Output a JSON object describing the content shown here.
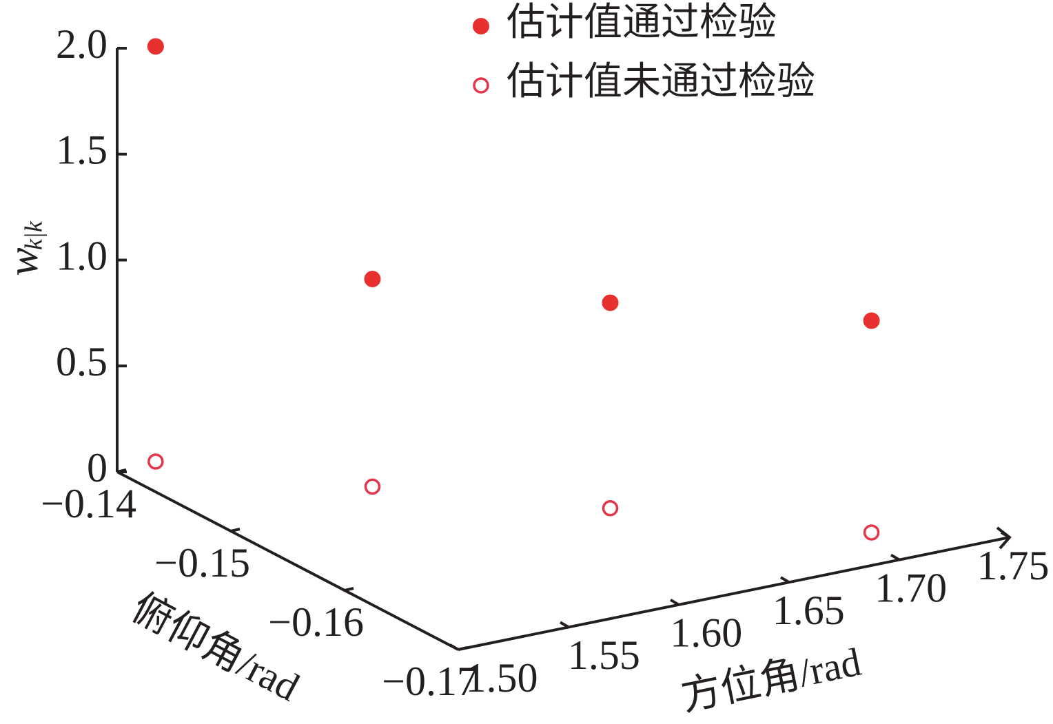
{
  "chart_data": {
    "type": "scatter3d",
    "x_label": "方位角/rad",
    "y_label": "俯仰角/rad",
    "z_label": "w",
    "z_label_subscript": "k|k",
    "xlim": [
      1.5,
      1.75
    ],
    "ylim": [
      -0.17,
      -0.14
    ],
    "zlim": [
      0,
      2
    ],
    "xticks": [
      {
        "value": 1.5,
        "label": "1.50"
      },
      1.55,
      {
        "value": 1.6,
        "label": "1.60"
      },
      1.65,
      {
        "value": 1.7,
        "label": "1.70"
      },
      1.75
    ],
    "yticks": [
      {
        "value": -0.14,
        "label": "−0.14"
      },
      {
        "value": -0.15,
        "label": "−0.15"
      },
      {
        "value": -0.16,
        "label": "−0.16"
      },
      {
        "value": -0.17,
        "label": "−0.17"
      }
    ],
    "zticks": [
      {
        "value": 0,
        "label": "0"
      },
      {
        "value": 0.5,
        "label": "0.5"
      },
      {
        "value": 1,
        "label": "1.0"
      },
      {
        "value": 1.5,
        "label": "1.5"
      },
      {
        "value": 2,
        "label": "2.0"
      }
    ],
    "series": [
      {
        "name": "估计值通过检验",
        "color": "#e8312f",
        "filled": true,
        "x": [
          1.519,
          1.574,
          1.638,
          1.708
        ],
        "y": [
          -0.1397,
          -0.1481,
          -0.1566,
          -0.166
        ],
        "z": [
          1.96,
          0.98,
          0.97,
          1.0
        ]
      },
      {
        "name": "估计值未通过检验",
        "color": "#e3344a",
        "filled": false,
        "x": [
          1.519,
          1.574,
          1.638,
          1.708
        ],
        "y": [
          -0.1397,
          -0.1481,
          -0.1566,
          -0.166
        ],
        "z": [
          0,
          0,
          0,
          0
        ]
      }
    ]
  }
}
